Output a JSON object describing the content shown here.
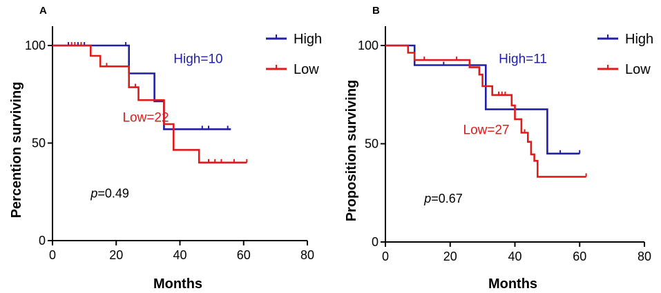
{
  "chart_data": [
    {
      "type": "line",
      "panel_label": "A",
      "xlabel": "Months",
      "ylabel": "Percention surviving",
      "xlim": [
        0,
        80
      ],
      "ylim": [
        0,
        100
      ],
      "xticks": [
        "0",
        "20",
        "40",
        "60",
        "80"
      ],
      "yticks": [
        "0",
        "50",
        "100"
      ],
      "legend_position": "top-right",
      "series": [
        {
          "name": "High",
          "color": "#1f1fa8",
          "steps": [
            [
              0,
              100
            ],
            [
              24,
              100
            ],
            [
              24,
              85.7
            ],
            [
              32,
              85.7
            ],
            [
              32,
              71.4
            ],
            [
              35,
              71.4
            ],
            [
              35,
              57.1
            ],
            [
              56,
              57.1
            ]
          ],
          "censors": [
            [
              5,
              100
            ],
            [
              8,
              100
            ],
            [
              10,
              100
            ],
            [
              23,
              100
            ],
            [
              47,
              57.1
            ],
            [
              49,
              57.1
            ],
            [
              55,
              57.1
            ]
          ]
        },
        {
          "name": "Low",
          "color": "#e11919",
          "steps": [
            [
              0,
              100
            ],
            [
              12,
              100
            ],
            [
              12,
              94.7
            ],
            [
              15,
              94.7
            ],
            [
              15,
              89.3
            ],
            [
              24,
              89.3
            ],
            [
              24,
              78.6
            ],
            [
              27,
              78.6
            ],
            [
              27,
              72
            ],
            [
              35,
              72
            ],
            [
              35,
              59.7
            ],
            [
              38,
              59.7
            ],
            [
              38,
              46.5
            ],
            [
              46,
              46.5
            ],
            [
              46,
              40
            ],
            [
              61,
              40
            ]
          ],
          "censors": [
            [
              6,
              100
            ],
            [
              7,
              100
            ],
            [
              9,
              100
            ],
            [
              17,
              89.3
            ],
            [
              26,
              78.6
            ],
            [
              49,
              40
            ],
            [
              51,
              40
            ],
            [
              53,
              40
            ],
            [
              57,
              40
            ],
            [
              61,
              40
            ]
          ]
        }
      ],
      "annotations": [
        {
          "text": "High=10",
          "series": "High",
          "x": 38,
          "y": 91
        },
        {
          "text": "Low=22",
          "series": "Low",
          "x": 22,
          "y": 61
        }
      ],
      "pvalue": {
        "italic": "p",
        "rest": "=0.49",
        "x": 12,
        "y": 22
      }
    },
    {
      "type": "line",
      "panel_label": "B",
      "xlabel": "Months",
      "ylabel": "Proposition surviving",
      "xlim": [
        0,
        80
      ],
      "ylim": [
        0,
        100
      ],
      "xticks": [
        "0",
        "20",
        "40",
        "60",
        "80"
      ],
      "yticks": [
        "0",
        "50",
        "100"
      ],
      "legend_position": "top-right",
      "series": [
        {
          "name": "High",
          "color": "#1f1fa8",
          "steps": [
            [
              0,
              100
            ],
            [
              9,
              100
            ],
            [
              9,
              90
            ],
            [
              31,
              90
            ],
            [
              31,
              67.5
            ],
            [
              50,
              67.5
            ],
            [
              50,
              45
            ],
            [
              60,
              45
            ]
          ],
          "censors": [
            [
              18,
              90
            ],
            [
              54,
              45
            ],
            [
              60,
              45
            ]
          ]
        },
        {
          "name": "Low",
          "color": "#e11919",
          "steps": [
            [
              0,
              100
            ],
            [
              7,
              100
            ],
            [
              7,
              96.3
            ],
            [
              9,
              96.3
            ],
            [
              9,
              92.6
            ],
            [
              26,
              92.6
            ],
            [
              26,
              88.9
            ],
            [
              29,
              88.9
            ],
            [
              29,
              85.2
            ],
            [
              30,
              85.2
            ],
            [
              30,
              79.3
            ],
            [
              33,
              79.3
            ],
            [
              33,
              74.8
            ],
            [
              39,
              74.8
            ],
            [
              39,
              69.5
            ],
            [
              40,
              69.5
            ],
            [
              40,
              62.5
            ],
            [
              42,
              62.5
            ],
            [
              42,
              55.6
            ],
            [
              44,
              55.6
            ],
            [
              44,
              51
            ],
            [
              45,
              51
            ],
            [
              45,
              44.6
            ],
            [
              46,
              44.6
            ],
            [
              46,
              41.3
            ],
            [
              47,
              41.3
            ],
            [
              47,
              33.2
            ],
            [
              62,
              33.2
            ]
          ],
          "censors": [
            [
              12,
              92.6
            ],
            [
              22,
              92.6
            ],
            [
              35,
              74.8
            ],
            [
              36,
              74.8
            ],
            [
              37,
              74.8
            ],
            [
              43,
              55.6
            ],
            [
              62,
              33.2
            ]
          ]
        }
      ],
      "annotations": [
        {
          "text": "High=11",
          "series": "High",
          "x": 35,
          "y": 91
        },
        {
          "text": "Low=27",
          "series": "Low",
          "x": 24,
          "y": 55
        }
      ],
      "pvalue": {
        "italic": "p",
        "rest": "=0.67",
        "x": 12,
        "y": 20
      }
    }
  ]
}
